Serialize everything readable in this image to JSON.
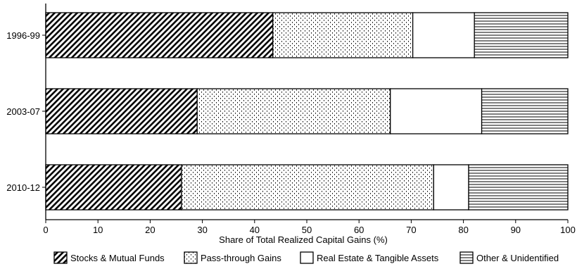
{
  "chart_data": {
    "type": "bar",
    "orientation": "horizontal",
    "stacked": true,
    "categories": [
      "1996-99",
      "2003-07",
      "2010-12"
    ],
    "series": [
      {
        "name": "Stocks & Mutual Funds",
        "values": [
          43.5,
          29.0,
          26.0
        ],
        "pattern": "diagonal"
      },
      {
        "name": "Pass-through Gains",
        "values": [
          26.8,
          37.0,
          48.3
        ],
        "pattern": "dots"
      },
      {
        "name": "Real Estate & Tangible Assets",
        "values": [
          11.8,
          17.5,
          6.7
        ],
        "pattern": "none"
      },
      {
        "name": "Other & Unidentified",
        "values": [
          17.9,
          16.5,
          19.0
        ],
        "pattern": "horizontal"
      }
    ],
    "xlabel": "Share of Total Realized Capital Gains (%)",
    "xlim": [
      0,
      100
    ],
    "xticks": [
      0,
      10,
      20,
      30,
      40,
      50,
      60,
      70,
      80,
      90,
      100
    ],
    "grid": false,
    "legend_position": "bottom",
    "colors": {
      "stroke": "#000000",
      "fill": "#ffffff"
    }
  }
}
